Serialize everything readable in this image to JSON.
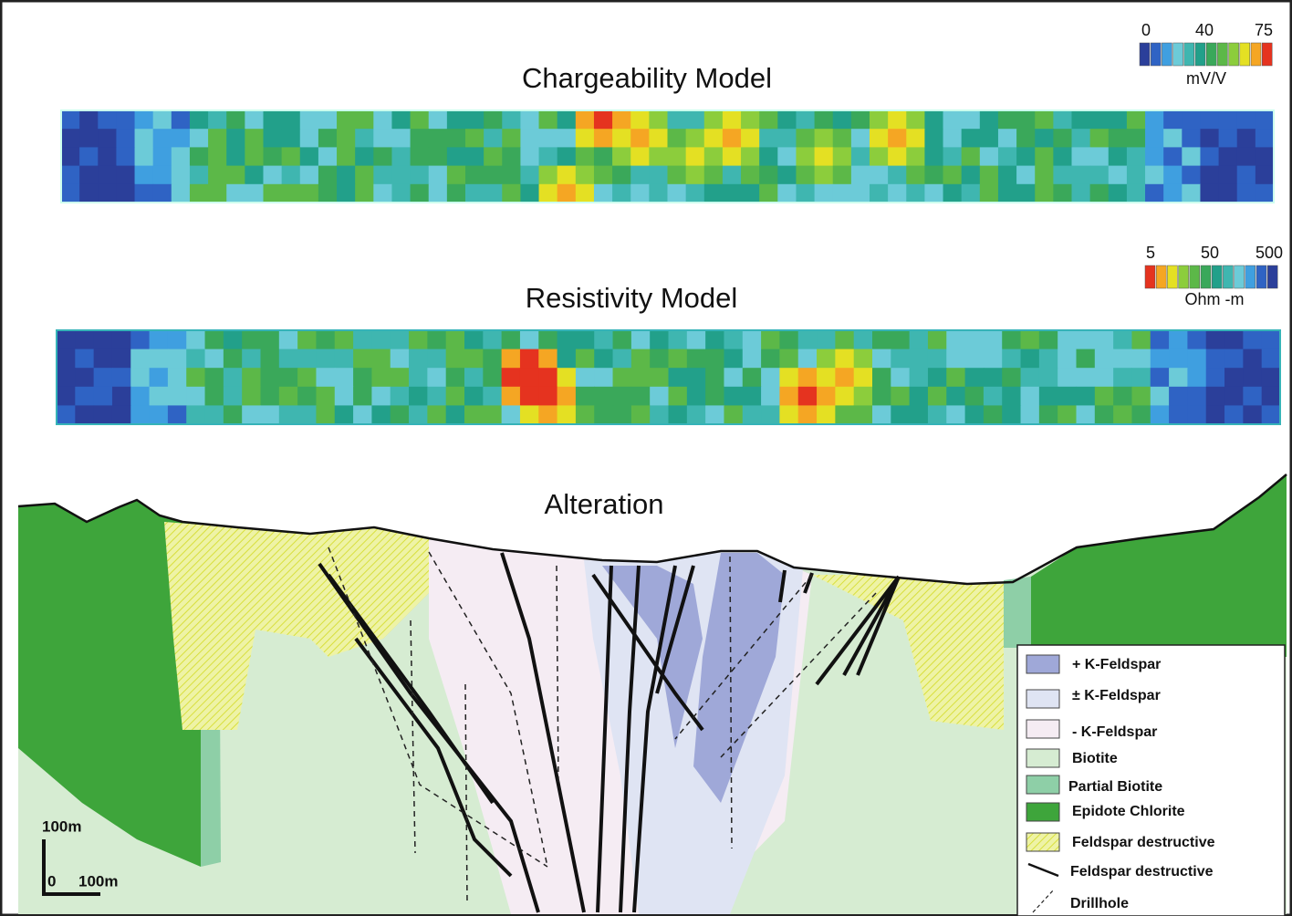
{
  "panels": [
    {
      "title": "Chargeability Model",
      "scale": {
        "labels": [
          "0",
          "40",
          "75"
        ],
        "unit": "mV/V"
      }
    },
    {
      "title": "Resistivity Model",
      "scale": {
        "labels": [
          "5",
          "50",
          "500"
        ],
        "unit": "Ohm -m"
      }
    }
  ],
  "section": {
    "title": "Alteration",
    "scale_bar": {
      "vertical": "100m",
      "origin": "0",
      "horizontal": "100m"
    }
  },
  "legend": [
    "+ K-Feldspar",
    "± K-Feldspar",
    "- K-Feldspar",
    "Biotite",
    "Partial Biotite",
    "Epidote Chlorite",
    "Feldspar destructive",
    "Feldspar destructive",
    "Drillhole"
  ]
}
